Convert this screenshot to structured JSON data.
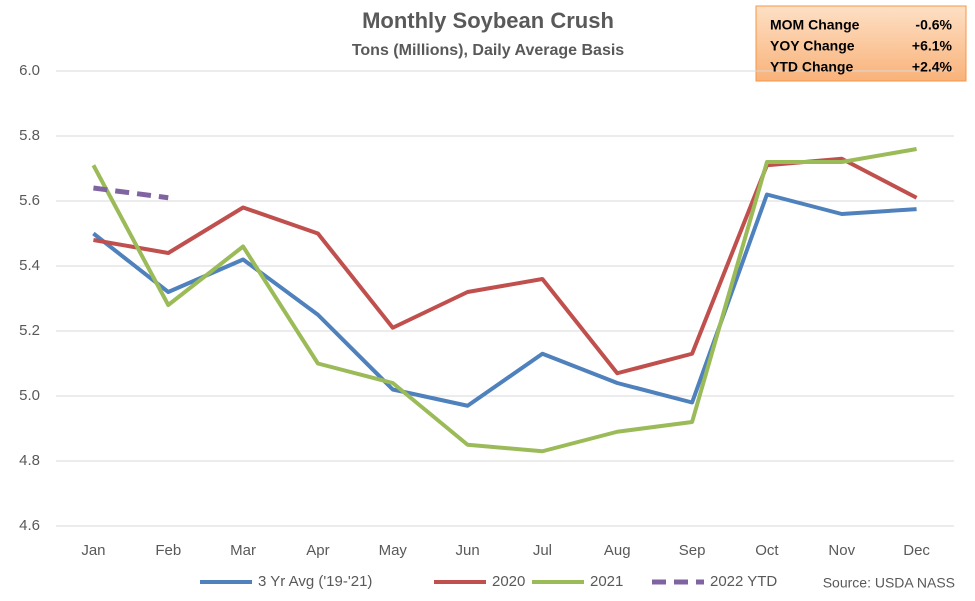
{
  "chart_data": {
    "type": "line",
    "title": "Monthly Soybean Crush",
    "subtitle": "Tons (Millions), Daily Average Basis",
    "source": "Source: USDA NASS",
    "categories": [
      "Jan",
      "Feb",
      "Mar",
      "Apr",
      "May",
      "Jun",
      "Jul",
      "Aug",
      "Sep",
      "Oct",
      "Nov",
      "Dec"
    ],
    "series": [
      {
        "name": "3 Yr Avg ('19-'21)",
        "color": "#4f81bd",
        "values": [
          5.5,
          5.32,
          5.42,
          5.25,
          5.02,
          4.97,
          5.13,
          5.04,
          4.98,
          5.62,
          5.56,
          5.575
        ]
      },
      {
        "name": "2020",
        "color": "#c0504d",
        "values": [
          5.48,
          5.44,
          5.58,
          5.5,
          5.21,
          5.32,
          5.36,
          5.07,
          5.13,
          5.71,
          5.73,
          5.61
        ]
      },
      {
        "name": "2021",
        "color": "#9bbb59",
        "values": [
          5.71,
          5.28,
          5.46,
          5.1,
          5.04,
          4.85,
          4.83,
          4.89,
          4.92,
          5.72,
          5.72,
          5.76
        ]
      },
      {
        "name": "2022 YTD",
        "color": "#8064a2",
        "dashed": true,
        "values": [
          5.64,
          5.61,
          null,
          null,
          null,
          null,
          null,
          null,
          null,
          null,
          null,
          null
        ]
      }
    ],
    "ylim": [
      4.6,
      6.0
    ],
    "yticks": [
      {
        "value": 4.6,
        "label": "4.6"
      },
      {
        "value": 4.8,
        "label": "4.8"
      },
      {
        "value": 5.0,
        "label": "5.0"
      },
      {
        "value": 5.2,
        "label": "5.2"
      },
      {
        "value": 5.4,
        "label": "5.4"
      },
      {
        "value": 5.6,
        "label": "5.6"
      },
      {
        "value": 5.8,
        "label": "5.8"
      },
      {
        "value": 6.0,
        "label": "6.0"
      }
    ],
    "grid": true,
    "info_box": [
      {
        "label": "MOM Change",
        "value": "-0.6%"
      },
      {
        "label": "YOY Change",
        "value": "+6.1%"
      },
      {
        "label": "YTD Change",
        "value": "+2.4%"
      }
    ]
  }
}
